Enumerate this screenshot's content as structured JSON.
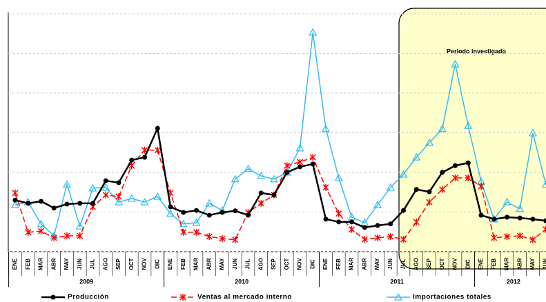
{
  "chart_data": {
    "type": "line",
    "categories": [
      "ENE",
      "FEB",
      "MAR",
      "ABR",
      "MAY",
      "JUN",
      "JUL",
      "AGO",
      "SEP",
      "OCT",
      "NOV",
      "DIC",
      "ENE",
      "FEB",
      "MAR",
      "ABR",
      "MAY",
      "JUN",
      "JUL",
      "AGO",
      "SEP",
      "OCT",
      "NOV",
      "DIC",
      "ENE",
      "FEB",
      "MAR",
      "ABR",
      "MAY",
      "JUN",
      "JUL",
      "AGO",
      "SEP",
      "OCT",
      "NOV",
      "DIC",
      "ENE",
      "FEB",
      "MAR",
      "ABR",
      "MAY",
      "JUN"
    ],
    "year_labels": [
      "2009",
      "2010",
      "2011",
      "2012"
    ],
    "annotation": "Periodo investigado",
    "ylim": [
      0,
      6
    ],
    "yticks": [
      0,
      1,
      2,
      3,
      4,
      5,
      6
    ],
    "grid": true,
    "series": [
      {
        "name": "Producción",
        "color": "#000000",
        "marker": "circle",
        "values": [
          1.3,
          1.22,
          1.27,
          1.1,
          1.2,
          1.22,
          1.22,
          1.79,
          1.74,
          2.31,
          2.38,
          3.11,
          1.13,
          0.99,
          1.04,
          0.92,
          0.99,
          1.03,
          0.92,
          1.48,
          1.43,
          2.0,
          2.14,
          2.21,
          0.82,
          0.75,
          0.75,
          0.61,
          0.66,
          0.7,
          1.04,
          1.57,
          1.51,
          2.0,
          2.17,
          2.24,
          0.92,
          0.82,
          0.87,
          0.85,
          0.82,
          0.78
        ]
      },
      {
        "name": "Ventas al mercado interno",
        "color": "#ff0000",
        "marker": "star",
        "dashed": true,
        "values": [
          1.48,
          0.49,
          0.52,
          0.35,
          0.4,
          0.4,
          1.13,
          1.43,
          1.39,
          2.17,
          2.56,
          2.56,
          1.48,
          0.49,
          0.49,
          0.38,
          0.33,
          0.3,
          0.99,
          1.22,
          1.43,
          2.17,
          2.26,
          2.38,
          1.62,
          0.96,
          0.56,
          0.31,
          0.35,
          0.38,
          0.31,
          0.75,
          1.25,
          1.57,
          1.86,
          1.86,
          1.65,
          0.35,
          0.38,
          0.4,
          0.3,
          0.56
        ]
      },
      {
        "name": "Importaciones totales",
        "color": "#33bbee",
        "marker": "triangle",
        "values": [
          1.18,
          1.25,
          0.7,
          0.4,
          1.7,
          0.64,
          1.6,
          1.62,
          1.25,
          1.34,
          1.25,
          1.39,
          0.96,
          0.7,
          0.73,
          1.22,
          1.04,
          1.83,
          2.09,
          1.91,
          1.83,
          2.0,
          2.61,
          5.53,
          3.1,
          1.86,
          0.87,
          0.73,
          1.18,
          1.62,
          1.95,
          2.38,
          2.75,
          3.1,
          4.73,
          3.18,
          1.77,
          0.82,
          1.25,
          1.08,
          2.99,
          1.69
        ]
      }
    ]
  }
}
